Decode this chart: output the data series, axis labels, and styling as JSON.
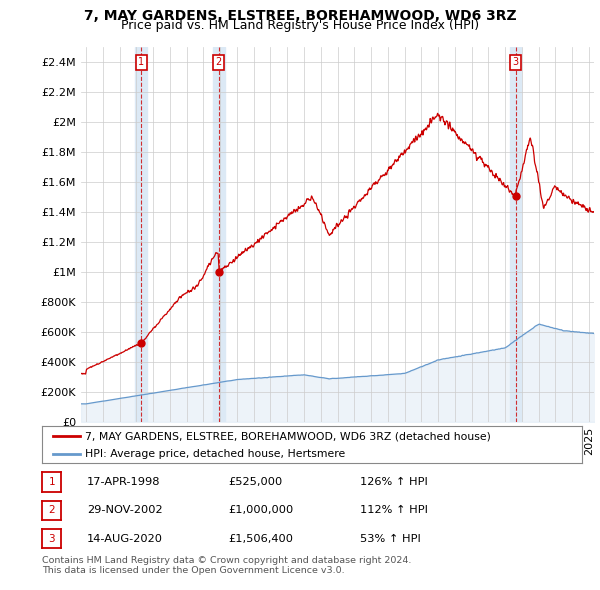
{
  "title": "7, MAY GARDENS, ELSTREE, BOREHAMWOOD, WD6 3RZ",
  "subtitle": "Price paid vs. HM Land Registry's House Price Index (HPI)",
  "ylabel_ticks": [
    "£0",
    "£200K",
    "£400K",
    "£600K",
    "£800K",
    "£1M",
    "£1.2M",
    "£1.4M",
    "£1.6M",
    "£1.8M",
    "£2M",
    "£2.2M",
    "£2.4M"
  ],
  "ytick_values": [
    0,
    200000,
    400000,
    600000,
    800000,
    1000000,
    1200000,
    1400000,
    1600000,
    1800000,
    2000000,
    2200000,
    2400000
  ],
  "xmin": 1994.7,
  "xmax": 2025.3,
  "ymin": 0,
  "ymax": 2500000,
  "sale_dates": [
    1998.29,
    2002.91,
    2020.62
  ],
  "sale_prices": [
    525000,
    1000000,
    1506400
  ],
  "sale_labels": [
    "1",
    "2",
    "3"
  ],
  "red_color": "#cc0000",
  "blue_color": "#6699cc",
  "blue_fill": "#dce9f5",
  "sale_column_fill": "#dce9f5",
  "legend_label_red": "7, MAY GARDENS, ELSTREE, BOREHAMWOOD, WD6 3RZ (detached house)",
  "legend_label_blue": "HPI: Average price, detached house, Hertsmere",
  "table_rows": [
    [
      "1",
      "17-APR-1998",
      "£525,000",
      "126% ↑ HPI"
    ],
    [
      "2",
      "29-NOV-2002",
      "£1,000,000",
      "112% ↑ HPI"
    ],
    [
      "3",
      "14-AUG-2020",
      "£1,506,400",
      "53% ↑ HPI"
    ]
  ],
  "footnote": "Contains HM Land Registry data © Crown copyright and database right 2024.\nThis data is licensed under the Open Government Licence v3.0.",
  "background_color": "#ffffff",
  "grid_color": "#cccccc",
  "title_fontsize": 10,
  "subtitle_fontsize": 9,
  "tick_fontsize": 8
}
